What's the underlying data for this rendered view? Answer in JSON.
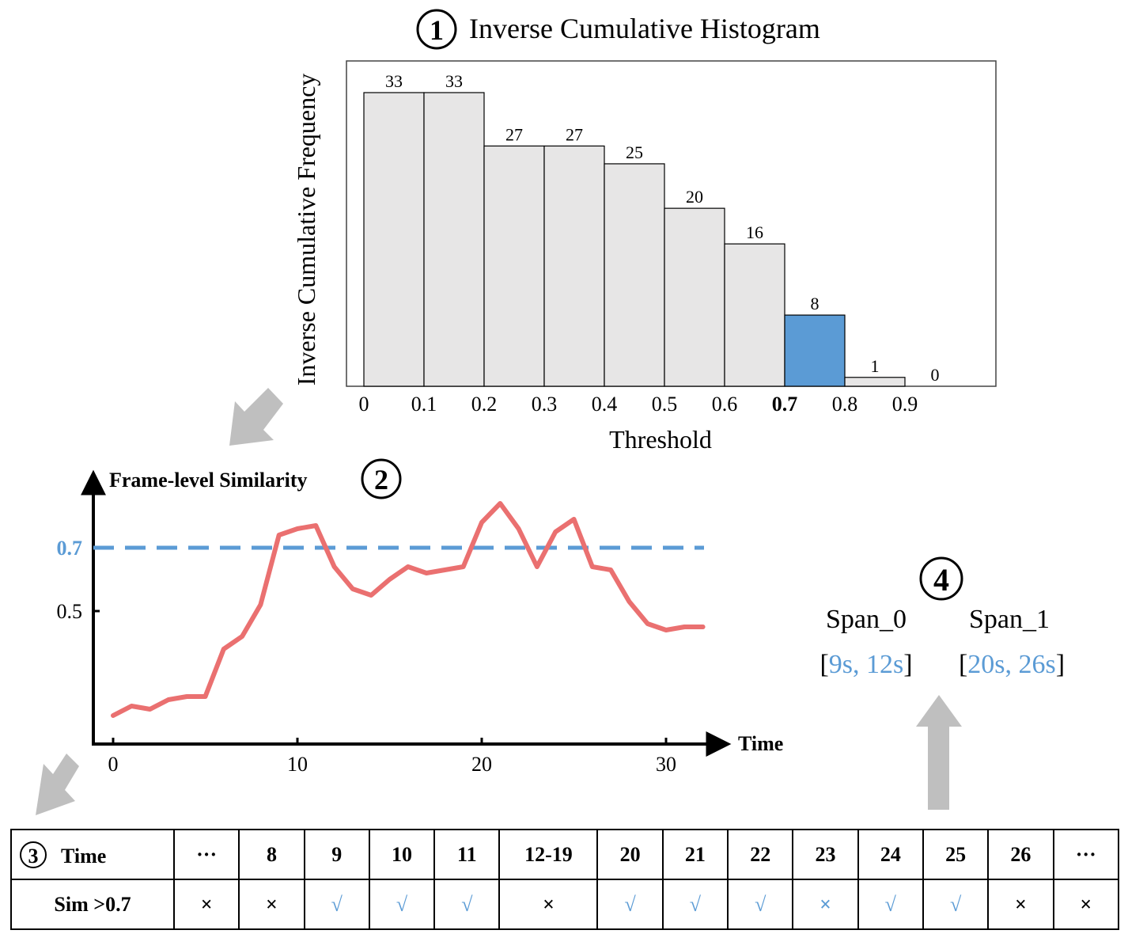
{
  "colors": {
    "bar_default": "#e7e6e6",
    "bar_highlight": "#5b9bd5",
    "line": "#ea7070",
    "threshold_line": "#5b9bd5",
    "arrow": "#bfbfbf",
    "span_value": "#5b9bd5"
  },
  "step1": {
    "badge": "1",
    "title": "Inverse Cumulative Histogram",
    "ylabel": "Inverse Cumulative Frequency",
    "xlabel": "Threshold",
    "highlight_tick": "0.7"
  },
  "step2": {
    "badge": "2",
    "title": "Frame-level Similarity",
    "xlabel": "Time",
    "threshold_label": "0.7",
    "mid_label": "0.5"
  },
  "step3": {
    "badge": "3",
    "row1_label": "Time",
    "row2_label": "Sim >0.7",
    "times": [
      "···",
      "8",
      "9",
      "10",
      "11",
      "12-19",
      "20",
      "21",
      "22",
      "23",
      "24",
      "25",
      "26",
      "···"
    ],
    "marks": [
      "×",
      "×",
      "√",
      "√",
      "√",
      "×",
      "√",
      "√",
      "√",
      "×",
      "√",
      "√",
      "×",
      "×"
    ],
    "mark_style": [
      "no",
      "no",
      "yes",
      "yes",
      "yes",
      "no",
      "yes",
      "yes",
      "yes",
      "no-blue",
      "yes",
      "yes",
      "no",
      "no"
    ]
  },
  "step4": {
    "badge": "4",
    "spans": [
      {
        "name": "Span_0",
        "range": "9s, 12s"
      },
      {
        "name": "Span_1",
        "range": "20s, 26s"
      }
    ]
  },
  "chart_data": [
    {
      "type": "bar",
      "title": "Inverse Cumulative Histogram",
      "xlabel": "Threshold",
      "ylabel": "Inverse Cumulative Frequency",
      "tick_labels": [
        "0",
        "0.1",
        "0.2",
        "0.3",
        "0.4",
        "0.5",
        "0.6",
        "0.7",
        "0.8",
        "0.9"
      ],
      "categories": [
        "0-0.1",
        "0.1-0.2",
        "0.2-0.3",
        "0.3-0.4",
        "0.4-0.5",
        "0.5-0.6",
        "0.6-0.7",
        "0.7-0.8",
        "0.8-0.9",
        "0.9-1.0"
      ],
      "values": [
        33,
        33,
        27,
        27,
        25,
        20,
        16,
        8,
        1,
        0
      ],
      "data_labels": [
        "33",
        "33",
        "27",
        "27",
        "25",
        "20",
        "16",
        "8",
        "1",
        "0"
      ],
      "highlight_index": 7,
      "ylim": [
        0,
        35
      ]
    },
    {
      "type": "line",
      "title": "Frame-level Similarity",
      "xlabel": "Time",
      "ylabel": "Frame-level Similarity",
      "x_ticks": [
        0,
        10,
        20,
        30
      ],
      "x_tick_labels": [
        "0",
        "10",
        "20",
        "30"
      ],
      "xlim": [
        -1,
        32.5
      ],
      "ylim": [
        0.08,
        0.93
      ],
      "x": [
        0,
        1,
        2,
        3,
        4,
        5,
        6,
        7,
        8,
        9,
        10,
        11,
        12,
        13,
        14,
        15,
        16,
        17,
        18,
        19,
        20,
        21,
        22,
        23,
        24,
        25,
        26,
        27,
        28,
        29,
        30,
        31,
        32
      ],
      "y": [
        0.17,
        0.2,
        0.19,
        0.22,
        0.23,
        0.23,
        0.38,
        0.42,
        0.52,
        0.74,
        0.76,
        0.77,
        0.64,
        0.57,
        0.55,
        0.6,
        0.64,
        0.62,
        0.63,
        0.64,
        0.78,
        0.84,
        0.76,
        0.64,
        0.75,
        0.79,
        0.64,
        0.63,
        0.53,
        0.46,
        0.44,
        0.45,
        0.45
      ],
      "threshold": 0.7,
      "y_reference": 0.5
    }
  ]
}
